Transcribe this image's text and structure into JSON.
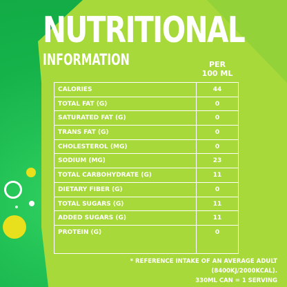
{
  "header": {
    "title": "NUTRITIONAL",
    "subtitle": "INFORMATION",
    "per_label": "PER",
    "per_unit": "100 ML"
  },
  "table": {
    "rows": [
      {
        "name": "CALORIES",
        "value": "44"
      },
      {
        "name": "TOTAL FAT (G)",
        "value": "0"
      },
      {
        "name": "SATURATED FAT (G)",
        "value": "0"
      },
      {
        "name": "TRANS FAT (G)",
        "value": "0"
      },
      {
        "name": "CHOLESTEROL (MG)",
        "value": "0"
      },
      {
        "name": "SODIUM (MG)",
        "value": "23"
      },
      {
        "name": "TOTAL CARBOHYDRATE (G)",
        "value": "11"
      },
      {
        "name": "DIETARY FIBER (G)",
        "value": "0"
      },
      {
        "name": "TOTAL SUGARS (G)",
        "value": "11"
      },
      {
        "name": "ADDED SUGARS (G)",
        "value": "11"
      },
      {
        "name": "PROTEIN (G)",
        "value": "0"
      }
    ]
  },
  "footnote": {
    "line1": "* REFERENCE INTAKE OF AN AVERAGE ADULT (8400KJ/2000KCAL).",
    "line2": "330ML CAN = 1 SERVING"
  },
  "colors": {
    "background_green": "#16b94a",
    "lime_panel": "#a7d93a",
    "bubble_yellow": "#e8df1d",
    "text": "#ffffff"
  }
}
